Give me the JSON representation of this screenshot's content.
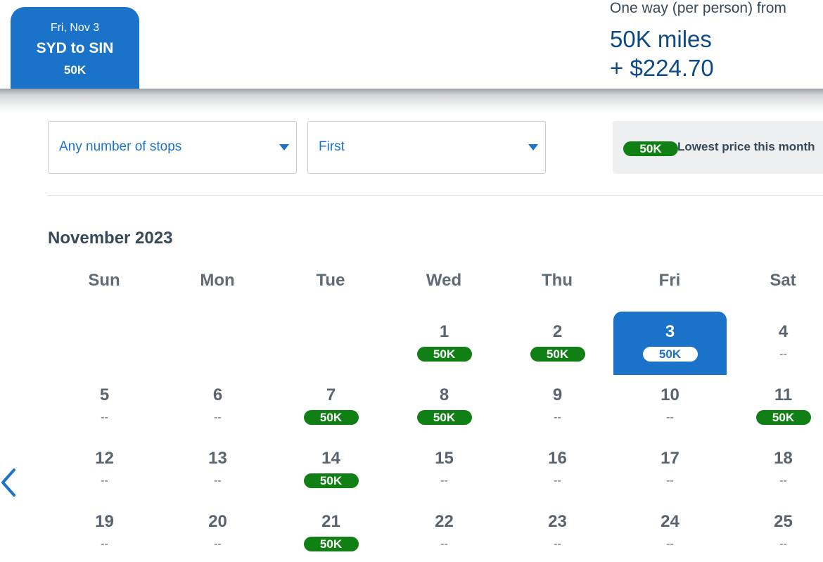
{
  "trip": {
    "date": "Fri, Nov 3",
    "route": "SYD to SIN",
    "price": "50K"
  },
  "fare": {
    "label": "One way (per person) from",
    "miles": "50K miles",
    "cash": "+ $224.70"
  },
  "filters": {
    "stops": {
      "value": "Any number of stops"
    },
    "cabin": {
      "value": "First"
    }
  },
  "legend": {
    "pill": "50K",
    "text": "Lowest price this month"
  },
  "calendar": {
    "month": "November 2023",
    "weekdays": [
      "Sun",
      "Mon",
      "Tue",
      "Wed",
      "Thu",
      "Fri",
      "Sat"
    ],
    "selected_day": "3",
    "weeks": [
      [
        null,
        null,
        null,
        {
          "day": "1",
          "price": "50K"
        },
        {
          "day": "2",
          "price": "50K"
        },
        {
          "day": "3",
          "price": "50K"
        },
        {
          "day": "4",
          "price": "--"
        }
      ],
      [
        {
          "day": "5",
          "price": "--"
        },
        {
          "day": "6",
          "price": "--"
        },
        {
          "day": "7",
          "price": "50K"
        },
        {
          "day": "8",
          "price": "50K"
        },
        {
          "day": "9",
          "price": "--"
        },
        {
          "day": "10",
          "price": "--"
        },
        {
          "day": "11",
          "price": "50K"
        }
      ],
      [
        {
          "day": "12",
          "price": "--"
        },
        {
          "day": "13",
          "price": "--"
        },
        {
          "day": "14",
          "price": "50K"
        },
        {
          "day": "15",
          "price": "--"
        },
        {
          "day": "16",
          "price": "--"
        },
        {
          "day": "17",
          "price": "--"
        },
        {
          "day": "18",
          "price": "--"
        }
      ],
      [
        {
          "day": "19",
          "price": "--"
        },
        {
          "day": "20",
          "price": "--"
        },
        {
          "day": "21",
          "price": "50K"
        },
        {
          "day": "22",
          "price": "--"
        },
        {
          "day": "23",
          "price": "--"
        },
        {
          "day": "24",
          "price": "--"
        },
        {
          "day": "25",
          "price": "--"
        }
      ]
    ]
  },
  "icons": {
    "prev": "chevron-left-icon",
    "dropdown": "caret-down-icon"
  },
  "colors": {
    "brand_blue": "#1a73c9",
    "price_green": "#118014",
    "dark_blue": "#0d4a86"
  }
}
